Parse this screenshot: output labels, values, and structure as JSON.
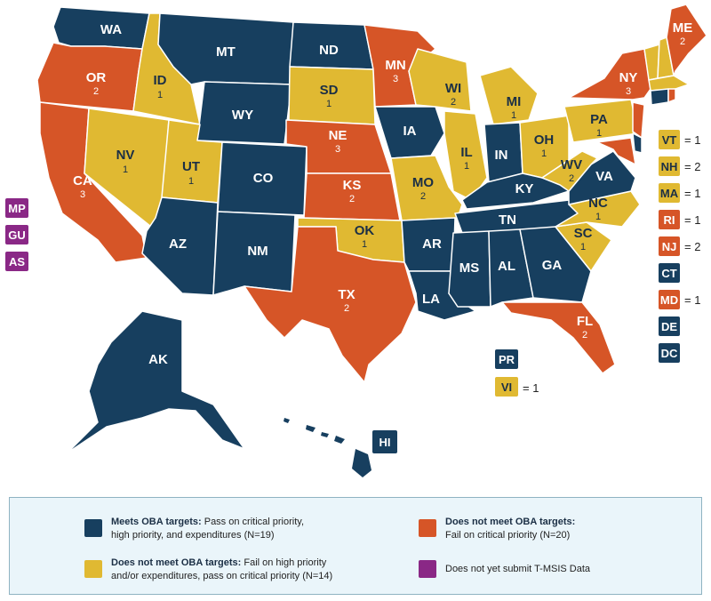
{
  "colors": {
    "meets": "#173f5f",
    "yellow": "#e0b932",
    "orange": "#d65527",
    "purple": "#8a2886"
  },
  "states": {
    "WA": {
      "label": "WA",
      "count": ""
    },
    "OR": {
      "label": "OR",
      "count": "2"
    },
    "CA": {
      "label": "CA",
      "count": "3"
    },
    "ID": {
      "label": "ID",
      "count": "1"
    },
    "NV": {
      "label": "NV",
      "count": "1"
    },
    "MT": {
      "label": "MT",
      "count": ""
    },
    "WY": {
      "label": "WY",
      "count": ""
    },
    "UT": {
      "label": "UT",
      "count": "1"
    },
    "AZ": {
      "label": "AZ",
      "count": ""
    },
    "CO": {
      "label": "CO",
      "count": ""
    },
    "NM": {
      "label": "NM",
      "count": ""
    },
    "ND": {
      "label": "ND",
      "count": ""
    },
    "SD": {
      "label": "SD",
      "count": "1"
    },
    "NE": {
      "label": "NE",
      "count": "3"
    },
    "KS": {
      "label": "KS",
      "count": "2"
    },
    "OK": {
      "label": "OK",
      "count": "1"
    },
    "TX": {
      "label": "TX",
      "count": "2"
    },
    "MN": {
      "label": "MN",
      "count": "3"
    },
    "IA": {
      "label": "IA",
      "count": ""
    },
    "MO": {
      "label": "MO",
      "count": "2"
    },
    "AR": {
      "label": "AR",
      "count": ""
    },
    "LA": {
      "label": "LA",
      "count": ""
    },
    "WI": {
      "label": "WI",
      "count": "2"
    },
    "IL": {
      "label": "IL",
      "count": "1"
    },
    "MI": {
      "label": "MI",
      "count": "1"
    },
    "IN": {
      "label": "IN",
      "count": ""
    },
    "OH": {
      "label": "OH",
      "count": "1"
    },
    "KY": {
      "label": "KY",
      "count": ""
    },
    "TN": {
      "label": "TN",
      "count": ""
    },
    "MS": {
      "label": "MS",
      "count": ""
    },
    "AL": {
      "label": "AL",
      "count": ""
    },
    "GA": {
      "label": "GA",
      "count": ""
    },
    "FL": {
      "label": "FL",
      "count": "2"
    },
    "SC": {
      "label": "SC",
      "count": "1"
    },
    "NC": {
      "label": "NC",
      "count": "1"
    },
    "VA": {
      "label": "VA",
      "count": ""
    },
    "WV": {
      "label": "WV",
      "count": "2"
    },
    "PA": {
      "label": "PA",
      "count": "1"
    },
    "NY": {
      "label": "NY",
      "count": "3"
    },
    "ME": {
      "label": "ME",
      "count": "2"
    },
    "AK": {
      "label": "AK",
      "count": ""
    }
  },
  "territories": {
    "MP": "MP",
    "GU": "GU",
    "AS": "AS",
    "PR": "PR",
    "VI": "VI",
    "HI": "HI",
    "VI_eq": "= 1"
  },
  "east_boxes": [
    {
      "label": "VT",
      "eq": "= 1"
    },
    {
      "label": "NH",
      "eq": "= 2"
    },
    {
      "label": "MA",
      "eq": "= 1"
    },
    {
      "label": "RI",
      "eq": "= 1"
    },
    {
      "label": "NJ",
      "eq": "= 2"
    },
    {
      "label": "CT",
      "eq": ""
    },
    {
      "label": "MD",
      "eq": "= 1"
    },
    {
      "label": "DE",
      "eq": ""
    },
    {
      "label": "DC",
      "eq": ""
    }
  ],
  "legend": {
    "meets_bold": "Meets OBA targets:",
    "meets_text1": " Pass on critical priority,",
    "meets_text2": "high priority, and expenditures (N=19)",
    "orange_bold": "Does not meet OBA targets:",
    "orange_text": "Fail on critical priority (N=20)",
    "yellow_bold": "Does not meet OBA targets:",
    "yellow_text1": " Fail on high priority",
    "yellow_text2": "and/or expenditures, pass on critical priority (N=14)",
    "purple_text": "Does not yet submit T-MSIS Data"
  }
}
